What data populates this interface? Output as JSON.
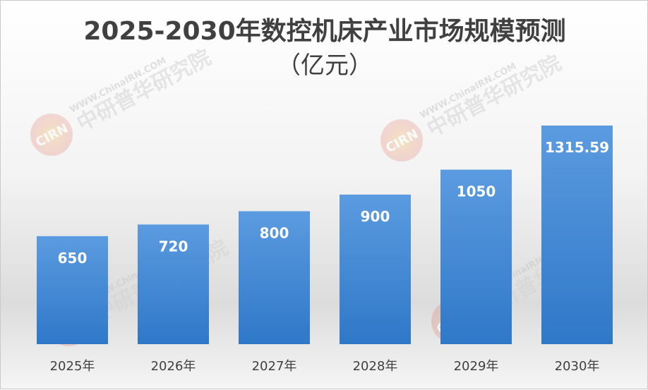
{
  "chart_data": {
    "type": "bar",
    "title": "2025-2030年数控机床产业市场规模预测",
    "subtitle": "（亿元）",
    "categories": [
      "2025年",
      "2026年",
      "2027年",
      "2028年",
      "2029年",
      "2030年"
    ],
    "values": [
      650,
      720,
      800,
      900,
      1050,
      1315.59
    ],
    "data_labels": [
      "650",
      "720",
      "800",
      "900",
      "1050",
      "1315.59"
    ],
    "xlabel": "",
    "ylabel": "",
    "ylim": [
      0,
      1440
    ],
    "grid": false,
    "legend": "none",
    "bar_color": "#4a8fd6",
    "label_color": "#ffffff"
  },
  "watermark": {
    "logo_text": "CIRN",
    "url_text": "WWW.ChinaIRN.COM",
    "org_text": "中研普华研究院"
  }
}
